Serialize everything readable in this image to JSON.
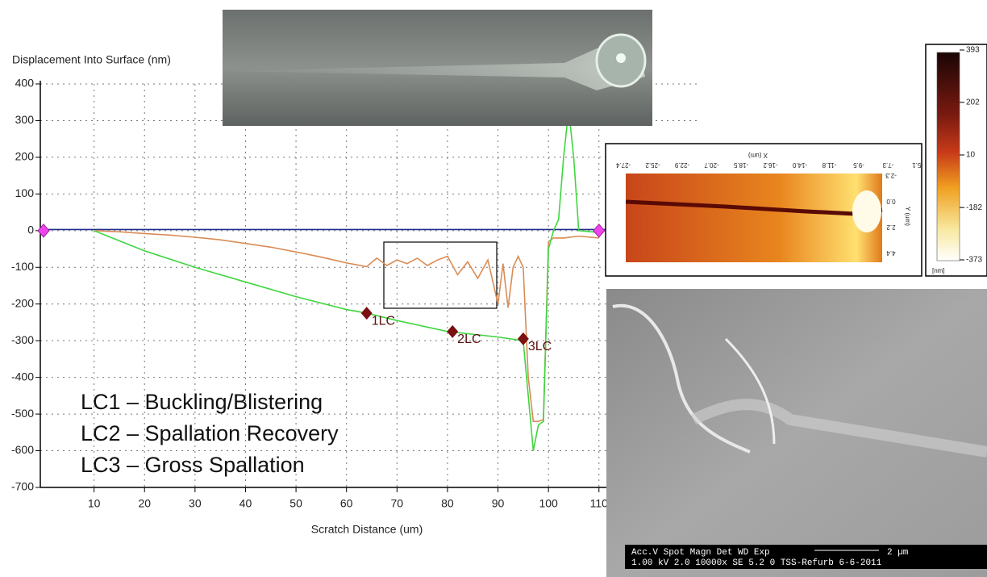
{
  "chart_data": {
    "type": "line",
    "y_axis_label": "Displacement Into Surface (nm)",
    "x_axis_label": "Scratch Distance  (um)",
    "xlim": [
      0,
      130
    ],
    "ylim": [
      -700,
      400
    ],
    "xticks": [
      10,
      20,
      30,
      40,
      50,
      60,
      70,
      80,
      90,
      100,
      110
    ],
    "yticks": [
      -700,
      -600,
      -500,
      -400,
      -300,
      -200,
      -100,
      0,
      100,
      200,
      300,
      400
    ],
    "grid": true,
    "series": [
      {
        "color": "#1f2a8c",
        "x": [
          0,
          10,
          20,
          30,
          40,
          50,
          60,
          70,
          80,
          90,
          100,
          112
        ],
        "values": [
          3,
          3,
          3,
          3,
          3,
          3,
          3,
          3,
          3,
          3,
          3,
          3
        ]
      },
      {
        "color": "#d98c55",
        "x": [
          10,
          15,
          20,
          25,
          30,
          35,
          40,
          45,
          50,
          55,
          60,
          64,
          66,
          68,
          70,
          72,
          74,
          76,
          78,
          80,
          82,
          84,
          86,
          88,
          90,
          91,
          92,
          93,
          94,
          95,
          96,
          97,
          98,
          99,
          100,
          101,
          103,
          106,
          110
        ],
        "values": [
          0,
          -3,
          -8,
          -12,
          -18,
          -25,
          -35,
          -45,
          -58,
          -72,
          -88,
          -98,
          -75,
          -95,
          -80,
          -90,
          -75,
          -95,
          -80,
          -70,
          -120,
          -85,
          -130,
          -80,
          -200,
          -90,
          -210,
          -100,
          -70,
          -100,
          -400,
          -520,
          -520,
          -515,
          -30,
          -20,
          -20,
          -15,
          -20
        ]
      },
      {
        "color": "#3fd63f",
        "x": [
          10,
          20,
          30,
          40,
          50,
          60,
          64,
          70,
          80,
          90,
          95,
          96,
          97,
          98,
          99,
          100,
          101,
          102,
          103,
          104,
          105,
          106,
          110
        ],
        "values": [
          0,
          -55,
          -100,
          -140,
          -180,
          -215,
          -225,
          -245,
          -275,
          -290,
          -300,
          -450,
          -600,
          -530,
          -520,
          -50,
          0,
          30,
          200,
          330,
          200,
          0,
          -5
        ]
      }
    ],
    "critical_loads": [
      {
        "x": 64,
        "y": -225,
        "label": "1LC"
      },
      {
        "x": 81,
        "y": -275,
        "label": "2LC"
      },
      {
        "x": 95,
        "y": -295,
        "label": "3LC"
      }
    ],
    "end_markers": [
      {
        "x": 0,
        "y": 0
      },
      {
        "x": 110,
        "y": 0
      }
    ],
    "annotations": [
      "LC1 – Buckling/Blistering",
      "LC2 – Spallation Recovery",
      "LC3 – Gross Spallation"
    ]
  },
  "afm": {
    "x_axis_label": "X (um)",
    "y_axis_label": "Y (um)",
    "x_tick_labels": [
      "-5.1",
      "-7.3",
      "-9.5",
      "-11.8",
      "-14.0",
      "-16.2",
      "-18.5",
      "-20.7",
      "-22.9",
      "-25.2",
      "-27.4"
    ],
    "y_tick_labels": [
      "-2.3",
      "0.0",
      "2.2",
      "4.4"
    ],
    "colorbar": {
      "ticks": [
        393,
        202,
        10,
        -182,
        -373
      ],
      "unit": "[nm]"
    }
  },
  "sem": {
    "header": "Acc.V  Spot Magn   Det  WD  Exp",
    "values": "1.00 kV 2.0  10000x  SE  5.2   0     TSS-Refurb 6-6-2011",
    "scale": "2 µm"
  }
}
